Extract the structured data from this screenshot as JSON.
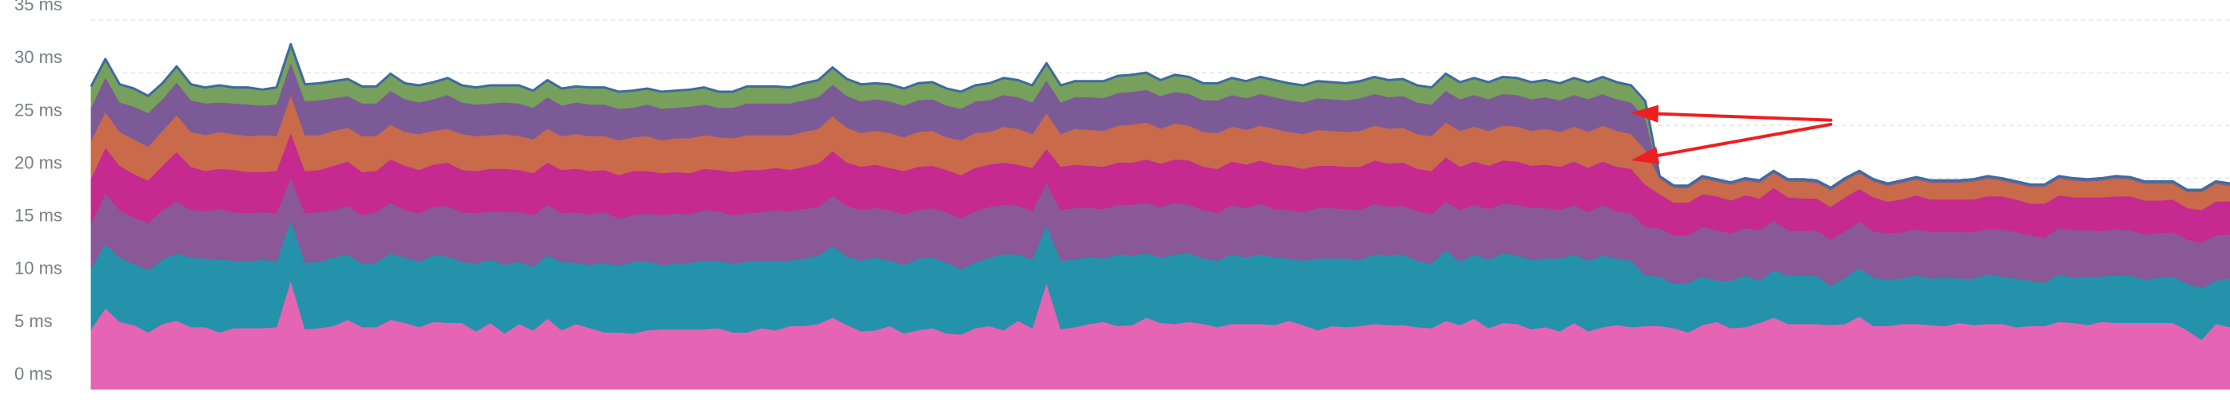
{
  "chart_data": {
    "type": "area",
    "stacked": true,
    "grid": true,
    "legend": "none",
    "y_unit": "ms",
    "ylim": [
      0,
      35
    ],
    "y_ticks": [
      {
        "value": 0,
        "label": "0 ms"
      },
      {
        "value": 5,
        "label": "5 ms"
      },
      {
        "value": 10,
        "label": "10 ms"
      },
      {
        "value": 15,
        "label": "15 ms"
      },
      {
        "value": 20,
        "label": "20 ms"
      },
      {
        "value": 25,
        "label": "25 ms"
      },
      {
        "value": 30,
        "label": "30 ms"
      },
      {
        "value": 35,
        "label": "35 ms"
      }
    ],
    "x": [
      0,
      1,
      2,
      3,
      4,
      5,
      6,
      7,
      8,
      9,
      10,
      11,
      12,
      13,
      14,
      15,
      16,
      17,
      18,
      19,
      20,
      21,
      22,
      23,
      24,
      25,
      26,
      27,
      28,
      29,
      30,
      31,
      32,
      33,
      34,
      35,
      36,
      37,
      38,
      39,
      40,
      41,
      42,
      43,
      44,
      45,
      46,
      47,
      48,
      49,
      50,
      51,
      52,
      53,
      54,
      55,
      56,
      57,
      58,
      59,
      60,
      61,
      62,
      63,
      64,
      65,
      66,
      67,
      68,
      69,
      70,
      71,
      72,
      73,
      74,
      75,
      76,
      77,
      78,
      79,
      80,
      81,
      82,
      83,
      84,
      85,
      86,
      87,
      88,
      89,
      90,
      91,
      92,
      93,
      94,
      95,
      96,
      97,
      98,
      99,
      100,
      101,
      102,
      103,
      104,
      105,
      106,
      107,
      108,
      109,
      110,
      111,
      112,
      113,
      114,
      115,
      116,
      117,
      118,
      119,
      120,
      121,
      122,
      123,
      124,
      125,
      126,
      127,
      128,
      129,
      130,
      131,
      132,
      133,
      134,
      135,
      136,
      137,
      138,
      139,
      140,
      141,
      142,
      143,
      144,
      145,
      146,
      147,
      148,
      149,
      150
    ],
    "series": [
      {
        "color": "#e565b4",
        "values": [
          5.7,
          7.7,
          6.4,
          6.1,
          5.4,
          6.2,
          6.5,
          5.9,
          5.9,
          5.4,
          5.8,
          5.8,
          5.8,
          5.9,
          10.3,
          5.7,
          5.8,
          6.0,
          6.6,
          5.9,
          5.9,
          6.6,
          6.3,
          5.9,
          6.4,
          6.3,
          6.3,
          5.5,
          6.3,
          5.3,
          6.2,
          5.6,
          6.7,
          5.6,
          6.2,
          5.8,
          5.4,
          5.4,
          5.3,
          5.6,
          5.7,
          5.7,
          5.7,
          5.7,
          5.8,
          5.4,
          5.4,
          5.8,
          5.6,
          6.0,
          6.0,
          6.2,
          6.8,
          6.1,
          5.5,
          5.6,
          6.0,
          5.3,
          5.6,
          5.8,
          5.3,
          5.2,
          5.8,
          6.0,
          5.6,
          6.5,
          5.8,
          10.1,
          5.7,
          5.9,
          6.2,
          6.4,
          6.0,
          6.1,
          6.8,
          6.3,
          6.2,
          6.4,
          6.2,
          5.9,
          6.2,
          6.2,
          6.2,
          6.1,
          6.5,
          6.1,
          5.6,
          6.0,
          5.9,
          6.0,
          6.2,
          6.1,
          6.1,
          5.9,
          5.8,
          6.5,
          6.1,
          6.7,
          5.8,
          6.3,
          6.2,
          5.7,
          5.9,
          5.5,
          6.3,
          5.5,
          5.9,
          6.1,
          5.9,
          6.0,
          6.0,
          5.8,
          5.4,
          6.1,
          6.4,
          5.8,
          5.9,
          6.3,
          6.8,
          6.2,
          6.2,
          6.2,
          6.1,
          6.2,
          6.9,
          6.0,
          6.0,
          6.2,
          6.2,
          6.1,
          6.0,
          6.3,
          6.1,
          6.2,
          6.2,
          5.9,
          6.0,
          6.0,
          6.4,
          6.3,
          6.1,
          6.4,
          6.3,
          6.3,
          6.3,
          6.3,
          6.3,
          5.6,
          4.7,
          6.2,
          5.9
        ]
      },
      {
        "color": "#2492aa",
        "values": [
          5.8,
          6.1,
          6.1,
          5.8,
          5.9,
          6.1,
          6.4,
          6.6,
          6.5,
          6.9,
          6.4,
          6.3,
          6.5,
          6.2,
          5.7,
          6.3,
          6.3,
          6.5,
          6.2,
          6.0,
          6.1,
          6.3,
          6.2,
          6.2,
          6.3,
          6.3,
          5.8,
          6.4,
          6.0,
          6.5,
          5.9,
          6.0,
          6.0,
          6.5,
          5.8,
          6.0,
          6.6,
          6.3,
          6.8,
          6.5,
          6.1,
          6.2,
          6.3,
          6.5,
          6.4,
          6.5,
          6.7,
          6.4,
          6.6,
          6.2,
          6.4,
          6.5,
          6.8,
          6.5,
          6.7,
          6.9,
          6.2,
          6.5,
          6.8,
          6.7,
          6.7,
          6.2,
          6.2,
          6.5,
          7.2,
          6.3,
          6.5,
          5.5,
          6.5,
          6.4,
          6.4,
          6.0,
          6.8,
          6.6,
          6.1,
          6.2,
          6.6,
          6.5,
          6.2,
          6.3,
          6.6,
          6.3,
          6.6,
          6.4,
          5.9,
          6.1,
          6.8,
          6.4,
          6.5,
          6.3,
          6.6,
          6.6,
          6.7,
          6.3,
          6.1,
          6.7,
          6.0,
          6.1,
          6.5,
          6.6,
          6.5,
          6.6,
          6.5,
          6.9,
          6.5,
          6.7,
          6.8,
          6.3,
          6.3,
          4.8,
          4.7,
          4.2,
          4.7,
          4.6,
          3.9,
          4.5,
          4.9,
          4.0,
          4.5,
          4.6,
          4.6,
          4.6,
          3.7,
          4.4,
          4.6,
          4.6,
          4.4,
          4.3,
          4.6,
          4.4,
          4.6,
          4.2,
          4.4,
          4.7,
          4.5,
          4.6,
          4.3,
          4.1,
          4.5,
          4.3,
          4.6,
          4.3,
          4.5,
          4.5,
          4.1,
          4.3,
          4.4,
          4.4,
          4.9,
          4.1,
          4.6
        ]
      },
      {
        "color": "#8a5797",
        "values": [
          4.2,
          4.8,
          4.5,
          4.4,
          4.5,
          4.7,
          4.9,
          4.5,
          4.5,
          4.8,
          4.6,
          4.6,
          4.5,
          4.6,
          4.1,
          4.7,
          4.7,
          4.5,
          4.6,
          4.6,
          4.8,
          4.8,
          4.5,
          4.6,
          4.6,
          4.8,
          4.7,
          4.8,
          4.6,
          5.0,
          4.7,
          4.9,
          4.8,
          4.6,
          4.8,
          4.8,
          4.8,
          4.5,
          4.4,
          4.6,
          4.7,
          4.8,
          4.6,
          4.8,
          4.7,
          4.6,
          4.6,
          4.6,
          4.8,
          4.7,
          4.7,
          4.6,
          4.8,
          4.8,
          4.8,
          4.7,
          4.8,
          4.8,
          4.6,
          4.7,
          4.8,
          4.8,
          4.9,
          4.8,
          4.7,
          4.6,
          4.6,
          4.0,
          4.8,
          4.9,
          4.6,
          4.7,
          4.7,
          4.8,
          4.8,
          4.8,
          4.9,
          4.6,
          4.6,
          4.5,
          4.7,
          4.7,
          4.8,
          4.6,
          4.6,
          4.6,
          4.8,
          4.8,
          4.7,
          4.7,
          4.8,
          4.6,
          4.6,
          4.7,
          4.7,
          4.6,
          4.9,
          4.7,
          4.8,
          4.7,
          4.8,
          4.9,
          4.8,
          4.6,
          4.7,
          4.6,
          4.8,
          4.5,
          4.5,
          4.6,
          4.6,
          4.6,
          4.5,
          4.7,
          4.8,
          4.5,
          4.5,
          4.8,
          4.7,
          4.3,
          4.2,
          4.3,
          4.4,
          4.4,
          4.4,
          4.4,
          4.4,
          4.4,
          4.4,
          4.4,
          4.4,
          4.4,
          4.4,
          4.3,
          4.5,
          4.4,
          4.3,
          4.3,
          4.4,
          4.5,
          4.4,
          4.3,
          4.4,
          4.3,
          4.3,
          4.2,
          4.2,
          4.2,
          4.3,
          4.3,
          4.2
        ]
      },
      {
        "color": "#c6298f",
        "values": [
          4.3,
          4.3,
          4.2,
          4.1,
          4.0,
          4.2,
          4.7,
          4.1,
          3.8,
          3.8,
          4.0,
          3.9,
          3.8,
          4.0,
          4.2,
          4.0,
          4.0,
          4.2,
          4.2,
          4.1,
          3.9,
          4.1,
          4.2,
          4.1,
          4.0,
          4.1,
          4.0,
          4.0,
          4.0,
          4.1,
          4.0,
          4.0,
          4.0,
          4.1,
          4.1,
          4.1,
          4.0,
          4.1,
          4.2,
          4.0,
          4.0,
          3.9,
          3.9,
          3.9,
          3.9,
          4.1,
          4.1,
          4.0,
          4.0,
          3.9,
          4.0,
          4.1,
          4.2,
          4.1,
          4.1,
          4.1,
          4.0,
          4.1,
          4.1,
          4.0,
          4.0,
          4.1,
          4.1,
          4.0,
          4.0,
          3.9,
          4.1,
          3.2,
          4.1,
          4.1,
          4.0,
          4.0,
          4.0,
          4.0,
          4.1,
          4.1,
          4.1,
          4.2,
          4.1,
          4.2,
          4.1,
          4.1,
          4.1,
          4.2,
          4.2,
          4.1,
          4.0,
          4.0,
          4.0,
          4.1,
          4.1,
          4.1,
          4.1,
          4.0,
          4.1,
          4.2,
          4.1,
          4.1,
          4.1,
          4.1,
          4.1,
          4.0,
          4.1,
          4.1,
          4.1,
          4.2,
          4.1,
          4.2,
          4.2,
          4.0,
          3.2,
          3.1,
          3.1,
          3.1,
          3.2,
          3.1,
          3.1,
          3.0,
          3.1,
          3.1,
          3.1,
          3.0,
          3.1,
          3.2,
          3.1,
          3.2,
          3.0,
          3.1,
          3.2,
          3.1,
          3.0,
          3.1,
          3.1,
          3.1,
          3.1,
          3.1,
          3.0,
          3.2,
          3.1,
          3.1,
          3.1,
          3.2,
          3.1,
          3.2,
          3.2,
          3.1,
          3.1,
          3.0,
          3.1,
          3.2,
          3.1
        ]
      },
      {
        "color": "#c96a4b",
        "values": [
          3.6,
          3.4,
          3.2,
          3.3,
          3.2,
          3.3,
          3.5,
          3.3,
          3.4,
          3.5,
          3.4,
          3.4,
          3.5,
          3.3,
          3.6,
          3.4,
          3.3,
          3.3,
          3.2,
          3.4,
          3.3,
          3.3,
          3.2,
          3.4,
          3.2,
          3.2,
          3.4,
          3.3,
          3.2,
          3.3,
          3.2,
          3.2,
          3.2,
          3.2,
          3.3,
          3.3,
          3.2,
          3.3,
          3.2,
          3.3,
          3.1,
          3.2,
          3.3,
          3.2,
          3.1,
          3.2,
          3.3,
          3.3,
          3.1,
          3.3,
          3.3,
          3.3,
          3.3,
          3.3,
          3.2,
          3.2,
          3.3,
          3.2,
          3.3,
          3.3,
          3.1,
          3.3,
          3.3,
          3.1,
          3.4,
          3.4,
          3.2,
          3.4,
          3.1,
          3.4,
          3.4,
          3.4,
          3.5,
          3.6,
          3.5,
          3.3,
          3.4,
          3.3,
          3.3,
          3.4,
          3.3,
          3.3,
          3.3,
          3.4,
          3.2,
          3.3,
          3.4,
          3.3,
          3.3,
          3.4,
          3.3,
          3.3,
          3.3,
          3.3,
          3.3,
          3.3,
          3.4,
          3.3,
          3.3,
          3.3,
          3.3,
          3.3,
          3.4,
          3.3,
          3.3,
          3.4,
          3.4,
          3.4,
          3.3,
          3.3,
          1.5,
          1.4,
          1.4,
          1.5,
          1.4,
          1.5,
          1.4,
          1.5,
          1.4,
          1.5,
          1.6,
          1.5,
          1.6,
          1.6,
          1.5,
          1.5,
          1.5,
          1.6,
          1.5,
          1.6,
          1.6,
          1.6,
          1.7,
          1.7,
          1.5,
          1.5,
          1.6,
          1.6,
          1.6,
          1.6,
          1.5,
          1.6,
          1.7,
          1.6,
          1.6,
          1.6,
          1.5,
          1.5,
          1.7,
          1.7,
          1.5
        ]
      },
      {
        "color": "#7c5a98",
        "values": [
          3.1,
          3.3,
          2.8,
          3.1,
          3.2,
          3.0,
          3.1,
          3.0,
          3.0,
          2.8,
          2.9,
          3.0,
          2.8,
          3.0,
          3.1,
          3.2,
          3.3,
          3.1,
          3.0,
          3.1,
          3.1,
          3.2,
          3.1,
          3.0,
          3.0,
          3.2,
          3.0,
          3.0,
          3.0,
          3.0,
          3.1,
          3.0,
          3.0,
          2.9,
          3.0,
          3.0,
          3.0,
          3.0,
          2.8,
          3.0,
          3.0,
          2.9,
          3.0,
          2.9,
          2.8,
          2.9,
          3.0,
          3.0,
          3.0,
          3.0,
          3.0,
          3.0,
          3.0,
          3.0,
          3.0,
          3.0,
          3.0,
          3.0,
          3.0,
          3.0,
          3.0,
          3.0,
          3.0,
          3.0,
          3.0,
          3.0,
          3.0,
          3.1,
          3.0,
          3.0,
          3.1,
          3.1,
          3.1,
          3.1,
          3.1,
          3.1,
          3.0,
          3.0,
          3.0,
          3.1,
          3.0,
          3.0,
          3.0,
          3.0,
          3.0,
          3.0,
          3.0,
          3.0,
          3.0,
          3.1,
          3.0,
          3.0,
          3.0,
          3.0,
          3.0,
          3.0,
          3.0,
          3.0,
          3.0,
          3.0,
          3.0,
          3.0,
          3.0,
          3.0,
          3.0,
          3.1,
          3.0,
          3.0,
          3.0,
          3.0,
          0.1,
          0.1,
          0.1,
          0.1,
          0.1,
          0.1,
          0.1,
          0.1,
          0.1,
          0.1,
          0.1,
          0.1,
          0.1,
          0.1,
          0.1,
          0.1,
          0.1,
          0.1,
          0.1,
          0.1,
          0.1,
          0.1,
          0.1,
          0.1,
          0.1,
          0.1,
          0.1,
          0.1,
          0.1,
          0.1,
          0.1,
          0.1,
          0.1,
          0.1,
          0.1,
          0.1,
          0.1,
          0.1,
          0.1,
          0.1,
          0.1
        ]
      },
      {
        "color": "#76a05b",
        "values": [
          2.0,
          1.7,
          1.7,
          1.7,
          1.6,
          1.5,
          1.5,
          1.5,
          1.5,
          1.6,
          1.5,
          1.6,
          1.5,
          1.6,
          1.7,
          1.6,
          1.6,
          1.6,
          1.6,
          1.6,
          1.6,
          1.6,
          1.5,
          1.6,
          1.6,
          1.6,
          1.6,
          1.6,
          1.7,
          1.6,
          1.7,
          1.6,
          1.6,
          1.6,
          1.5,
          1.6,
          1.6,
          1.6,
          1.6,
          1.5,
          1.6,
          1.6,
          1.6,
          1.6,
          1.5,
          1.5,
          1.6,
          1.6,
          1.6,
          1.5,
          1.6,
          1.6,
          1.6,
          1.6,
          1.6,
          1.5,
          1.6,
          1.6,
          1.6,
          1.6,
          1.6,
          1.6,
          1.5,
          1.6,
          1.6,
          1.6,
          1.6,
          1.6,
          1.6,
          1.5,
          1.5,
          1.6,
          1.6,
          1.6,
          1.6,
          1.5,
          1.6,
          1.6,
          1.6,
          1.6,
          1.6,
          1.6,
          1.6,
          1.6,
          1.6,
          1.6,
          1.6,
          1.6,
          1.6,
          1.6,
          1.6,
          1.6,
          1.6,
          1.6,
          1.6,
          1.6,
          1.6,
          1.6,
          1.6,
          1.6,
          1.6,
          1.6,
          1.6,
          1.6,
          1.6,
          1.6,
          1.6,
          1.6,
          1.6,
          1.6,
          0.1,
          0.1,
          0.1,
          0.1,
          0.1,
          0.1,
          0.1,
          0.1,
          0.1,
          0.1,
          0.1,
          0.1,
          0.1,
          0.1,
          0.1,
          0.1,
          0.1,
          0.1,
          0.1,
          0.1,
          0.1,
          0.1,
          0.1,
          0.1,
          0.1,
          0.1,
          0.1,
          0.1,
          0.1,
          0.1,
          0.1,
          0.1,
          0.1,
          0.1,
          0.1,
          0.1,
          0.1,
          0.1,
          0.1,
          0.1,
          0.1
        ]
      }
    ],
    "outline_color": "#3d6b9c",
    "annotations": [
      {
        "type": "arrow",
        "color": "#ee1f1f",
        "from": [
          122,
          25.5
        ],
        "to": [
          108,
          26.2
        ]
      },
      {
        "type": "arrow",
        "color": "#ee1f1f",
        "from": [
          122,
          25.1
        ],
        "to": [
          108,
          21.7
        ]
      }
    ]
  }
}
